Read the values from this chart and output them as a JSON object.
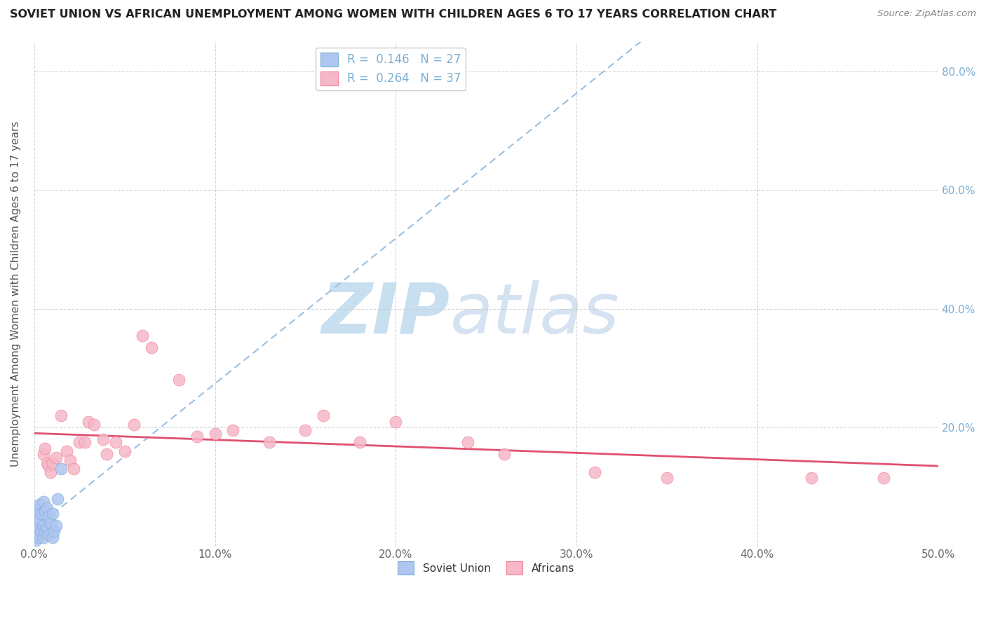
{
  "title": "SOVIET UNION VS AFRICAN UNEMPLOYMENT AMONG WOMEN WITH CHILDREN AGES 6 TO 17 YEARS CORRELATION CHART",
  "source": "Source: ZipAtlas.com",
  "ylabel": "Unemployment Among Women with Children Ages 6 to 17 years",
  "xlim": [
    0.0,
    0.5
  ],
  "ylim": [
    0.0,
    0.85
  ],
  "xticks": [
    0.0,
    0.1,
    0.2,
    0.3,
    0.4,
    0.5
  ],
  "yticks": [
    0.0,
    0.2,
    0.4,
    0.6,
    0.8
  ],
  "xtick_labels": [
    "0.0%",
    "10.0%",
    "20.0%",
    "30.0%",
    "40.0%",
    "50.0%"
  ],
  "ytick_labels": [
    "",
    "20.0%",
    "40.0%",
    "60.0%",
    "80.0%"
  ],
  "soviet_x": [
    0.001,
    0.001,
    0.001,
    0.002,
    0.002,
    0.002,
    0.003,
    0.003,
    0.003,
    0.004,
    0.004,
    0.005,
    0.005,
    0.005,
    0.006,
    0.006,
    0.007,
    0.007,
    0.008,
    0.008,
    0.009,
    0.01,
    0.01,
    0.011,
    0.012,
    0.013,
    0.015
  ],
  "soviet_y": [
    0.01,
    0.03,
    0.06,
    0.015,
    0.04,
    0.065,
    0.02,
    0.045,
    0.07,
    0.025,
    0.055,
    0.015,
    0.035,
    0.075,
    0.025,
    0.06,
    0.03,
    0.065,
    0.02,
    0.05,
    0.04,
    0.015,
    0.055,
    0.025,
    0.035,
    0.08,
    0.13
  ],
  "african_x": [
    0.005,
    0.006,
    0.007,
    0.008,
    0.009,
    0.01,
    0.012,
    0.015,
    0.018,
    0.02,
    0.022,
    0.025,
    0.028,
    0.03,
    0.033,
    0.038,
    0.04,
    0.045,
    0.05,
    0.055,
    0.06,
    0.065,
    0.08,
    0.09,
    0.1,
    0.11,
    0.13,
    0.15,
    0.16,
    0.18,
    0.2,
    0.24,
    0.26,
    0.31,
    0.35,
    0.43,
    0.47
  ],
  "african_y": [
    0.155,
    0.165,
    0.14,
    0.135,
    0.125,
    0.14,
    0.15,
    0.22,
    0.16,
    0.145,
    0.13,
    0.175,
    0.175,
    0.21,
    0.205,
    0.18,
    0.155,
    0.175,
    0.16,
    0.205,
    0.355,
    0.335,
    0.28,
    0.185,
    0.19,
    0.195,
    0.175,
    0.195,
    0.22,
    0.175,
    0.21,
    0.175,
    0.155,
    0.125,
    0.115,
    0.115,
    0.115
  ],
  "soviet_dot_color": "#aec6f0",
  "soviet_edge_color": "#7bafd4",
  "african_dot_color": "#f5b8c8",
  "african_edge_color": "#f48099",
  "trend_soviet_color": "#9bbfe0",
  "trend_african_color": "#e05070",
  "background_color": "#ffffff",
  "grid_color": "#cccccc",
  "R_soviet": 0.146,
  "N_soviet": 27,
  "R_african": 0.264,
  "N_african": 37
}
